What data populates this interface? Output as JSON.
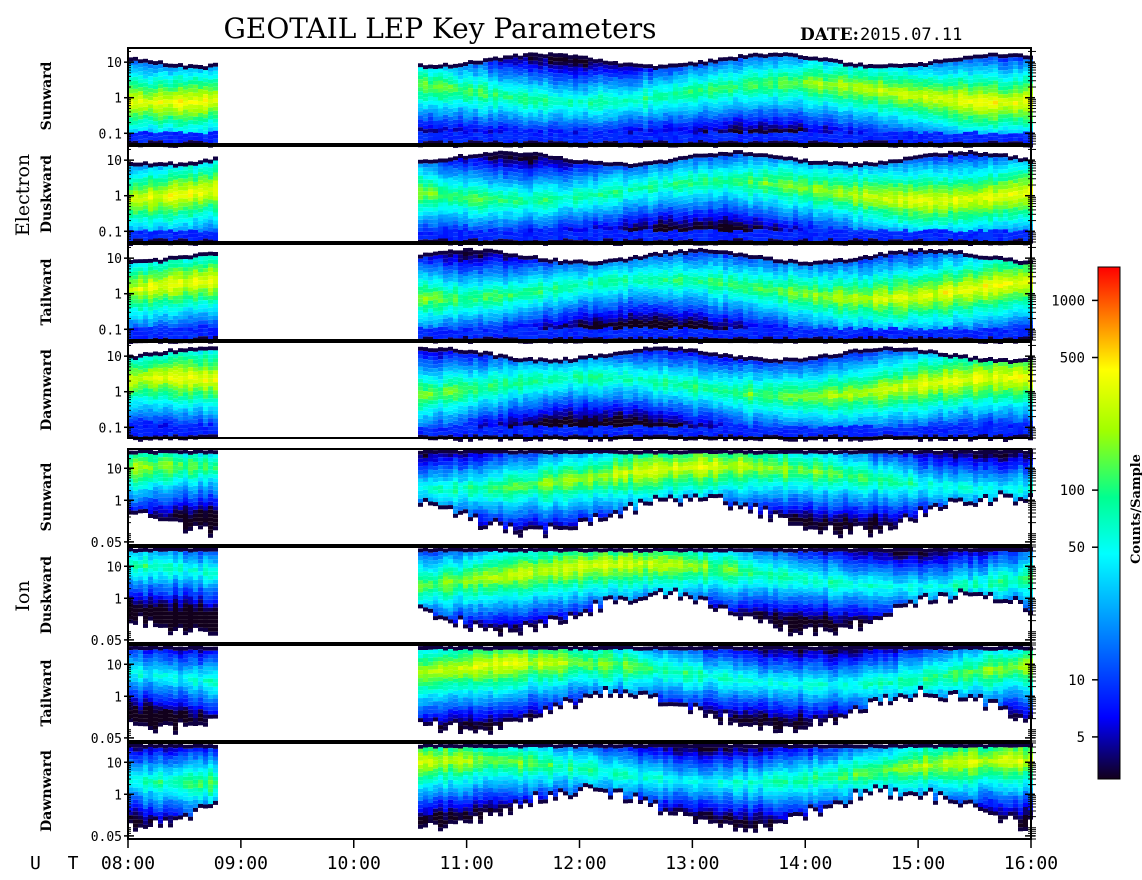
{
  "chart_data": {
    "type": "heatmap",
    "title": "GEOTAIL LEP Key Parameters",
    "date_label": "DATE:",
    "date_value": "2015.07.11",
    "x_axis_label": "U T",
    "x_ticks": [
      "08:00",
      "09:00",
      "10:00",
      "11:00",
      "12:00",
      "13:00",
      "14:00",
      "15:00",
      "16:00"
    ],
    "x_range_hours": [
      8.0,
      16.0
    ],
    "data_gap_hours": [
      8.83,
      10.55
    ],
    "groups": [
      {
        "label": "Electron",
        "panels": [
          {
            "label": "Sunward",
            "y_ticks": [
              "10",
              "1",
              "0.1"
            ],
            "y_range": [
              0.05,
              25
            ]
          },
          {
            "label": "Duskward",
            "y_ticks": [
              "10",
              "1",
              "0.1"
            ],
            "y_range": [
              0.05,
              25
            ]
          },
          {
            "label": "Tailward",
            "y_ticks": [
              "10",
              "1",
              "0.1"
            ],
            "y_range": [
              0.05,
              25
            ]
          },
          {
            "label": "Dawnward",
            "y_ticks": [
              "10",
              "1",
              "0.1"
            ],
            "y_range": [
              0.05,
              25
            ]
          }
        ]
      },
      {
        "label": "Ion",
        "panels": [
          {
            "label": "Sunward",
            "y_ticks": [
              "10",
              "1",
              "0.05"
            ],
            "y_range": [
              0.04,
              40
            ]
          },
          {
            "label": "Duskward",
            "y_ticks": [
              "10",
              "1",
              "0.05"
            ],
            "y_range": [
              0.04,
              40
            ]
          },
          {
            "label": "Tailward",
            "y_ticks": [
              "10",
              "1",
              "0.05"
            ],
            "y_range": [
              0.04,
              40
            ]
          },
          {
            "label": "Dawnward",
            "y_ticks": [
              "10",
              "1",
              "0.05"
            ],
            "y_range": [
              0.04,
              40
            ]
          }
        ]
      }
    ],
    "colorbar": {
      "label": "Counts/Sample",
      "scale": "log",
      "range": [
        3,
        1500
      ],
      "ticks": [
        {
          "value": 1000,
          "label": "1000"
        },
        {
          "value": 500,
          "label": "500"
        },
        {
          "value": 100,
          "label": "100"
        },
        {
          "value": 50,
          "label": "50"
        },
        {
          "value": 10,
          "label": "10"
        },
        {
          "value": 5,
          "label": "5"
        }
      ],
      "colors": [
        "#12001c",
        "#0000ff",
        "#0090ff",
        "#00ffff",
        "#00ff90",
        "#a0ff00",
        "#ffff00",
        "#ff8000",
        "#ff0000"
      ]
    }
  }
}
